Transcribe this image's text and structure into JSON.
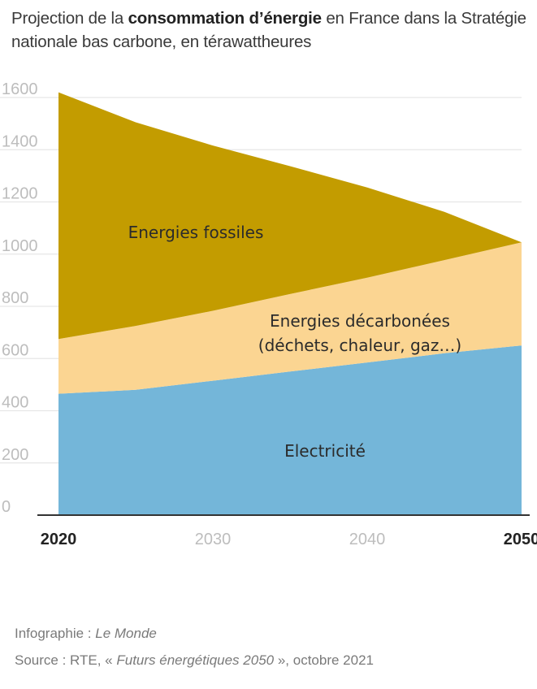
{
  "title": {
    "prefix": "Projection de la ",
    "bold": "consommation d’énergie",
    "suffix": " en France dans la Stratégie nationale bas carbone, en térawattheures"
  },
  "chart_data": {
    "type": "area",
    "stacked": true,
    "x": [
      2020,
      2025,
      2030,
      2035,
      2040,
      2045,
      2050
    ],
    "xticks": [
      "2020",
      "2030",
      "2040",
      "2050"
    ],
    "xticks_emphasized": [
      "2020",
      "2050"
    ],
    "ylim": [
      0,
      1600
    ],
    "yticks": [
      "0",
      "200",
      "400",
      "600",
      "800",
      "1000",
      "1200",
      "1400",
      "1600"
    ],
    "grid": true,
    "series": [
      {
        "name": "Electricité",
        "values": [
          465,
          480,
          515,
          550,
          585,
          620,
          650
        ],
        "color": "#74b6d9"
      },
      {
        "name": "Energies décarbonées",
        "name_line2": "(déchets, chaleur, gaz…)",
        "values": [
          210,
          245,
          268,
          297,
          325,
          357,
          395
        ],
        "color": "#fbd592"
      },
      {
        "name": "Energies fossiles",
        "values": [
          945,
          780,
          633,
          490,
          345,
          185,
          0
        ],
        "color": "#c39c00"
      }
    ]
  },
  "footer": {
    "credit_prefix": "Infographie : ",
    "credit_name": "Le Monde",
    "source_prefix": "Source : RTE, « ",
    "source_title": "Futurs énergétiques 2050",
    "source_suffix": " », octobre 2021"
  }
}
